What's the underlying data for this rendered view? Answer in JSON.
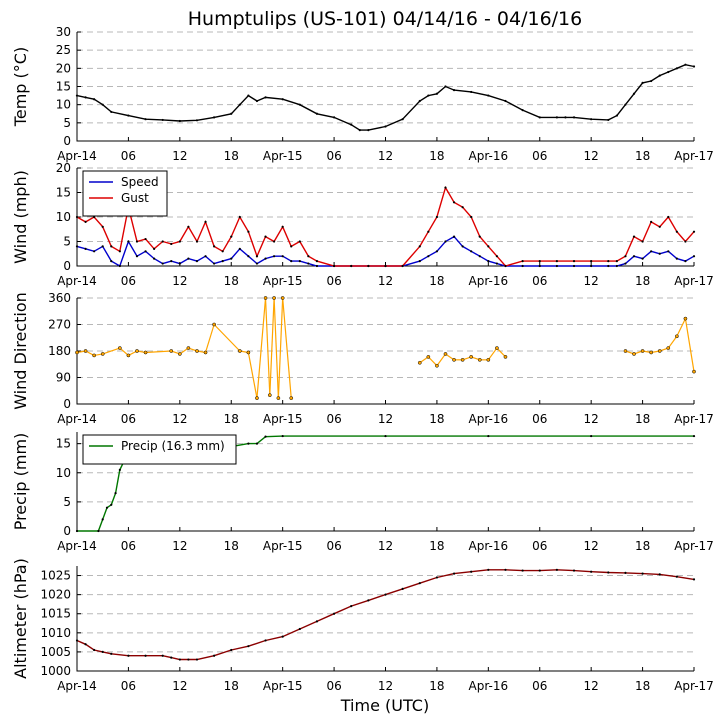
{
  "title": "Humptulips (US-101) 04/14/16 - 04/16/16",
  "xlabel": "Time (UTC)",
  "x_ticks": [
    "Apr-14",
    "06",
    "12",
    "18",
    "Apr-15",
    "06",
    "12",
    "18",
    "Apr-16",
    "06",
    "12",
    "18",
    "Apr-17"
  ],
  "colors": {
    "temp": "#000000",
    "speed": "#0000cc",
    "gust": "#dd0000",
    "dir": "#ffa500",
    "precip": "#007700",
    "alt": "#8b0000",
    "marker": "#000000"
  },
  "chart_data": [
    {
      "type": "line",
      "ylabel": "Temp ($^{\\circ}$C)",
      "ylabel_display": "Temp (°C)",
      "ylim": [
        0,
        30
      ],
      "yticks": [
        "0",
        "5",
        "10",
        "15",
        "20",
        "25",
        "30"
      ],
      "xlim_hours": [
        0,
        72
      ],
      "grid": true,
      "series": [
        {
          "color": "#000000",
          "x_hours": [
            0,
            1,
            2,
            3,
            4,
            6,
            8,
            10,
            12,
            14,
            16,
            18,
            19,
            20,
            21,
            22,
            24,
            26,
            28,
            30,
            32,
            33,
            34,
            36,
            38,
            40,
            41,
            42,
            43,
            44,
            46,
            48,
            50,
            52,
            54,
            56,
            57,
            58,
            60,
            62,
            63,
            64,
            65,
            66,
            67,
            68,
            69,
            70,
            71,
            72
          ],
          "values": [
            12.5,
            12,
            11.5,
            10,
            8,
            7,
            6,
            5.8,
            5.5,
            5.7,
            6.5,
            7.5,
            10,
            12.5,
            11,
            12,
            11.5,
            10,
            7.5,
            6.5,
            4.5,
            3,
            3,
            4,
            6,
            11,
            12.5,
            13,
            15,
            14,
            13.5,
            12.5,
            11,
            8.5,
            6.5,
            6.5,
            6.5,
            6.5,
            6,
            5.8,
            7,
            10,
            13,
            16,
            16.5,
            18,
            19,
            20,
            21,
            20.5
          ]
        }
      ]
    },
    {
      "type": "line",
      "ylabel": "Wind (mph)",
      "ylim": [
        0,
        20
      ],
      "yticks": [
        "0",
        "5",
        "10",
        "15",
        "20"
      ],
      "xlim_hours": [
        0,
        72
      ],
      "grid": true,
      "legend": {
        "placement": "top-left",
        "entries": [
          "Speed",
          "Gust"
        ]
      },
      "series": [
        {
          "name": "Speed",
          "color": "#0000cc",
          "x_hours": [
            0,
            1,
            2,
            3,
            4,
            5,
            6,
            7,
            8,
            9,
            10,
            11,
            12,
            13,
            14,
            15,
            16,
            17,
            18,
            19,
            20,
            21,
            22,
            23,
            24,
            25,
            26,
            27,
            28,
            30,
            32,
            34,
            36,
            38,
            40,
            41,
            42,
            43,
            44,
            45,
            46,
            47,
            48,
            49,
            50,
            52,
            54,
            56,
            58,
            60,
            62,
            63,
            64,
            65,
            66,
            67,
            68,
            69,
            70,
            71,
            72
          ],
          "values": [
            4,
            3.5,
            3,
            4,
            1,
            0,
            5,
            2,
            3,
            1.5,
            0.5,
            1,
            0.5,
            1.5,
            1,
            2,
            0.5,
            1,
            1.5,
            3.5,
            2,
            0.5,
            1.5,
            2,
            2,
            1,
            1,
            0.5,
            0,
            0,
            0,
            0,
            0,
            0,
            1,
            2,
            3,
            5,
            6,
            4,
            3,
            2,
            1,
            0.5,
            0,
            0,
            0,
            0,
            0,
            0,
            0,
            0,
            0.5,
            2,
            1.5,
            3,
            2.5,
            3,
            1.5,
            1,
            2
          ]
        },
        {
          "name": "Gust",
          "color": "#dd0000",
          "x_hours": [
            0,
            1,
            2,
            3,
            4,
            5,
            6,
            7,
            8,
            9,
            10,
            11,
            12,
            13,
            14,
            15,
            16,
            17,
            18,
            19,
            20,
            21,
            22,
            23,
            24,
            25,
            26,
            27,
            28,
            30,
            32,
            34,
            36,
            38,
            40,
            41,
            42,
            43,
            44,
            45,
            46,
            47,
            48,
            49,
            50,
            52,
            54,
            56,
            58,
            60,
            62,
            63,
            64,
            65,
            66,
            67,
            68,
            69,
            70,
            71,
            72
          ],
          "values": [
            10,
            9,
            10,
            8,
            4,
            3,
            12,
            5,
            5.5,
            3.5,
            5,
            4.5,
            5,
            8,
            5,
            9,
            4,
            3,
            6,
            10,
            7,
            2,
            6,
            5,
            8,
            4,
            5,
            2,
            1,
            0,
            0,
            0,
            0,
            0,
            4,
            7,
            10,
            16,
            13,
            12,
            10,
            6,
            4,
            2,
            0,
            1,
            1,
            1,
            1,
            1,
            1,
            1,
            2,
            6,
            5,
            9,
            8,
            10,
            7,
            5,
            7
          ]
        }
      ]
    },
    {
      "type": "scatter",
      "ylabel": "Wind Direction",
      "ylim": [
        0,
        360
      ],
      "yticks": [
        "0",
        "90",
        "180",
        "270",
        "360"
      ],
      "xlim_hours": [
        0,
        72
      ],
      "grid": true,
      "series": [
        {
          "color": "#ffa500",
          "x_hours": [
            0,
            1,
            2,
            3,
            5,
            6,
            7,
            8,
            11,
            12,
            13,
            14,
            15,
            16,
            19,
            20,
            21,
            22,
            22.5,
            23,
            23.5,
            24,
            25,
            40,
            41,
            42,
            43,
            44,
            45,
            46,
            47,
            48,
            49,
            50,
            64,
            65,
            66,
            67,
            68,
            69,
            70,
            71,
            72
          ],
          "values": [
            175,
            180,
            165,
            170,
            190,
            165,
            180,
            175,
            180,
            170,
            190,
            180,
            175,
            270,
            180,
            175,
            20,
            360,
            30,
            360,
            20,
            360,
            20,
            140,
            160,
            130,
            170,
            150,
            150,
            160,
            150,
            150,
            190,
            160,
            180,
            170,
            180,
            175,
            180,
            190,
            230,
            290,
            110
          ]
        }
      ]
    },
    {
      "type": "line",
      "ylabel": "Precip (mm)",
      "ylim": [
        0,
        17
      ],
      "yticks": [
        "0",
        "5",
        "10",
        "15"
      ],
      "xlim_hours": [
        0,
        72
      ],
      "grid": true,
      "legend": {
        "placement": "top-left",
        "entries": [
          "Precip (16.3 mm)"
        ]
      },
      "series": [
        {
          "name": "Precip (16.3 mm)",
          "color": "#007700",
          "x_hours": [
            0,
            2.5,
            3,
            3.5,
            4,
            4.5,
            5,
            5.5,
            6,
            7,
            8,
            9,
            10,
            12,
            14,
            16,
            18,
            20,
            21,
            22,
            24,
            36,
            48,
            60,
            72
          ],
          "values": [
            0,
            0,
            2,
            4,
            4.5,
            6.5,
            10.5,
            12,
            12.5,
            12.8,
            13,
            13,
            13.2,
            13.3,
            13.5,
            14,
            14.5,
            15,
            15,
            16.2,
            16.3,
            16.3,
            16.3,
            16.3,
            16.3
          ]
        }
      ]
    },
    {
      "type": "line",
      "ylabel": "Altimeter (hPa)",
      "ylim": [
        1000,
        1027.5
      ],
      "yticks": [
        "1000",
        "1005",
        "1010",
        "1015",
        "1020",
        "1025"
      ],
      "xlim_hours": [
        0,
        72
      ],
      "grid": true,
      "series": [
        {
          "color": "#8b0000",
          "x_hours": [
            0,
            1,
            2,
            3,
            4,
            6,
            8,
            10,
            11,
            12,
            13,
            14,
            16,
            18,
            20,
            22,
            24,
            26,
            28,
            30,
            32,
            34,
            36,
            38,
            40,
            42,
            44,
            46,
            48,
            50,
            52,
            54,
            56,
            58,
            60,
            62,
            64,
            66,
            68,
            70,
            72
          ],
          "values": [
            1008,
            1007,
            1005.5,
            1005,
            1004.5,
            1004,
            1004,
            1004,
            1003.5,
            1003,
            1003,
            1003,
            1004,
            1005.5,
            1006.5,
            1008,
            1009,
            1011,
            1013,
            1015,
            1017,
            1018.5,
            1020,
            1021.5,
            1023,
            1024.5,
            1025.5,
            1026,
            1026.5,
            1026.5,
            1026.3,
            1026.3,
            1026.5,
            1026.3,
            1026,
            1025.8,
            1025.7,
            1025.5,
            1025.3,
            1024.7,
            1024
          ]
        }
      ]
    }
  ]
}
